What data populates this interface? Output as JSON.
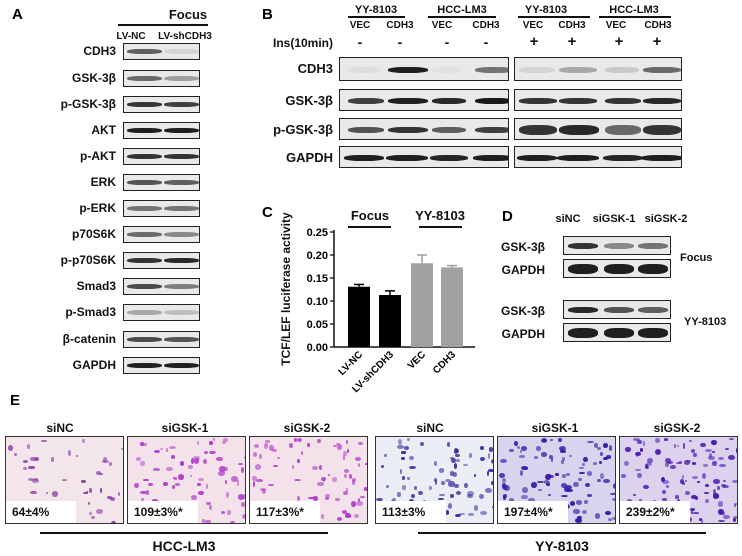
{
  "panelA": {
    "letter": "A",
    "group": "Focus",
    "columns": [
      "LV-NC",
      "LV-shCDH3"
    ],
    "rows": [
      "CDH3",
      "GSK-3β",
      "p-GSK-3β",
      "AKT",
      "p-AKT",
      "ERK",
      "p-ERK",
      "p70S6K",
      "p-p70S6K",
      "Smad3",
      "p-Smad3",
      "β-catenin",
      "GAPDH"
    ]
  },
  "panelB": {
    "letter": "B",
    "treatment_label": "Ins(10min)",
    "groups": [
      {
        "name": "YY-8103",
        "columns": [
          "VEC",
          "CDH3"
        ],
        "treatment": [
          "-",
          "-"
        ]
      },
      {
        "name": "HCC-LM3",
        "columns": [
          "VEC",
          "CDH3"
        ],
        "treatment": [
          "-",
          "-"
        ]
      },
      {
        "name": "YY-8103",
        "columns": [
          "VEC",
          "CDH3"
        ],
        "treatment": [
          "+",
          "+"
        ]
      },
      {
        "name": "HCC-LM3",
        "columns": [
          "VEC",
          "CDH3"
        ],
        "treatment": [
          "+",
          "+"
        ]
      }
    ],
    "rows": [
      "CDH3",
      "GSK-3β",
      "p-GSK-3β",
      "GAPDH"
    ]
  },
  "panelC": {
    "letter": "C",
    "group_labels": [
      "Focus",
      "YY-8103"
    ]
  },
  "chart_data": {
    "type": "bar",
    "title": "",
    "xlabel": "",
    "ylabel": "TCF/LEF luciferase activity",
    "categories": [
      "LV-NC",
      "LV-shCDH3",
      "VEC",
      "CDH3"
    ],
    "groups": [
      "Focus",
      "Focus",
      "YY-8103",
      "YY-8103"
    ],
    "values": [
      0.131,
      0.113,
      0.182,
      0.173
    ],
    "errors": [
      0.005,
      0.009,
      0.018,
      0.004
    ],
    "colors": [
      "#000000",
      "#000000",
      "#a0a0a2",
      "#a0a0a2"
    ],
    "yticks": [
      "0.00",
      "0.05",
      "0.10",
      "0.15",
      "0.20",
      "0.25"
    ],
    "ylim": [
      0,
      0.25
    ],
    "grid": false,
    "legend": "none"
  },
  "panelD": {
    "letter": "D",
    "columns": [
      "siNC",
      "siGSK-1",
      "siGSK-2"
    ],
    "blocks": [
      {
        "cell_line": "Focus",
        "rows": [
          "GSK-3β",
          "GAPDH"
        ]
      },
      {
        "cell_line": "YY-8103",
        "rows": [
          "GSK-3β",
          "GAPDH"
        ]
      }
    ]
  },
  "panelE": {
    "letter": "E",
    "groups": [
      {
        "cell_line": "HCC-LM3",
        "images": [
          {
            "label": "siNC",
            "value": "64±4%"
          },
          {
            "label": "siGSK-1",
            "value": "109±3%*"
          },
          {
            "label": "siGSK-2",
            "value": "117±3%*"
          }
        ]
      },
      {
        "cell_line": "YY-8103",
        "images": [
          {
            "label": "siNC",
            "value": "113±3%"
          },
          {
            "label": "siGSK-1",
            "value": "197±4%*"
          },
          {
            "label": "siGSK-2",
            "value": "239±2%*"
          }
        ]
      }
    ]
  }
}
